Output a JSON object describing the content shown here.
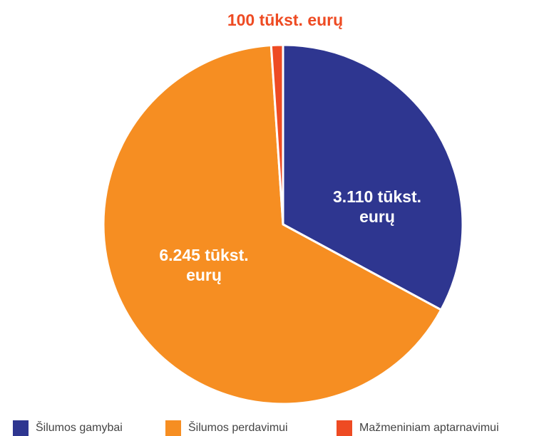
{
  "chart_data": {
    "type": "pie",
    "categories": [
      "Šilumos gamybai",
      "Šilumos perdavimui",
      "Mažmeniniam aptarnavimui"
    ],
    "values": [
      3110,
      6245,
      100
    ],
    "value_labels": [
      "3.110 tūkst. eurų",
      "6.245 tūkst. eurų",
      "100 tūkst. eurų"
    ],
    "colors": [
      "#2e3690",
      "#f68e22",
      "#ee4b23"
    ],
    "legend": "bottom"
  }
}
